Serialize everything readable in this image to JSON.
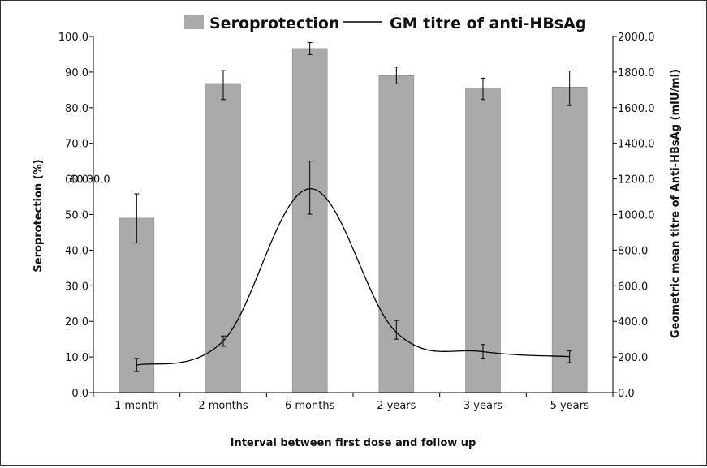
{
  "chart_data": {
    "type": "bar",
    "categories": [
      "1 month",
      "2 months",
      "6 months",
      "2 years",
      "3 years",
      "5 years"
    ],
    "xlabel": "Interval between first dose and follow up",
    "ylabel": "Seroprotection (%)",
    "y2label": "Geometric mean titre of Anti-HBsAg (mIU/ml)",
    "ylim": [
      0,
      100
    ],
    "y2lim": [
      0,
      2000
    ],
    "yticks": [
      "0.0",
      "10.0",
      "20.0",
      "30.0",
      "40.0",
      "50.0",
      "60.0",
      "70.0",
      "80.0",
      "90.0",
      "100.0"
    ],
    "y2ticks": [
      "0.0",
      "200.0",
      "400.0",
      "600.0",
      "800.0",
      "1000.0",
      "1200.0",
      "1400.0",
      "1600.0",
      "1800.0",
      "2000.0"
    ],
    "legend": {
      "position": "top"
    },
    "series": [
      {
        "name": "Seroprotection",
        "type": "bar",
        "axis": "left",
        "color": "#aaaaaa",
        "values": [
          49.0,
          86.8,
          96.6,
          89.0,
          85.5,
          85.8
        ],
        "error_low": [
          42.0,
          82.3,
          94.9,
          86.7,
          82.3,
          80.6
        ],
        "error_high": [
          55.8,
          90.4,
          98.3,
          91.4,
          88.3,
          90.3
        ]
      },
      {
        "name": "GM titre of anti-HBsAg",
        "type": "line",
        "axis": "right",
        "color": "#000000",
        "values": [
          154,
          290,
          1145,
          338,
          230,
          202
        ],
        "error_low": [
          118,
          260,
          1002,
          300,
          193,
          168
        ],
        "error_high": [
          192,
          318,
          1300,
          405,
          270,
          234
        ]
      }
    ],
    "annotations": [
      {
        "text": "60.00.0",
        "note_value": 60
      }
    ]
  }
}
